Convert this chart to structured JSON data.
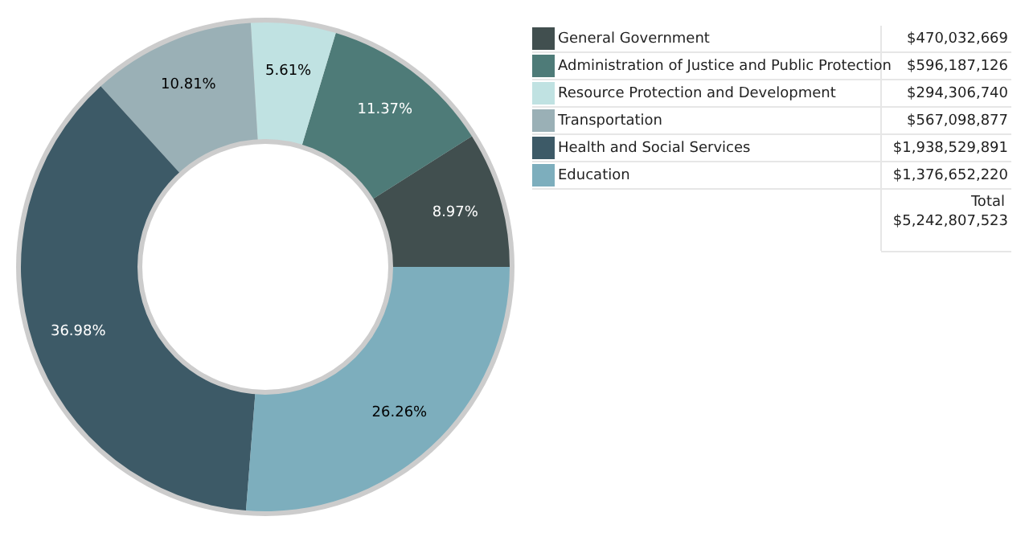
{
  "chart_data": {
    "type": "donut",
    "categories": [
      "General Government",
      "Administration of Justice and Public Protection",
      "Resource Protection and Development",
      "Transportation",
      "Health and Social Services",
      "Education"
    ],
    "values": [
      8.97,
      11.37,
      5.61,
      10.81,
      36.98,
      26.26
    ],
    "colors": [
      "#414f4f",
      "#4e7b78",
      "#c0e2e2",
      "#9ab0b6",
      "#3d5a67",
      "#7daebd"
    ],
    "value_labels": [
      "8.97%",
      "11.37%",
      "5.61%",
      "10.81%",
      "36.98%",
      "26.26%"
    ],
    "annotations": [
      "$470,032,669",
      "$596,187,126",
      "$294,306,740",
      "$567,098,877",
      "$1,938,529,891",
      "$1,376,652,220",
      "Total",
      "$5,242,807,523"
    ],
    "legend": "right"
  }
}
